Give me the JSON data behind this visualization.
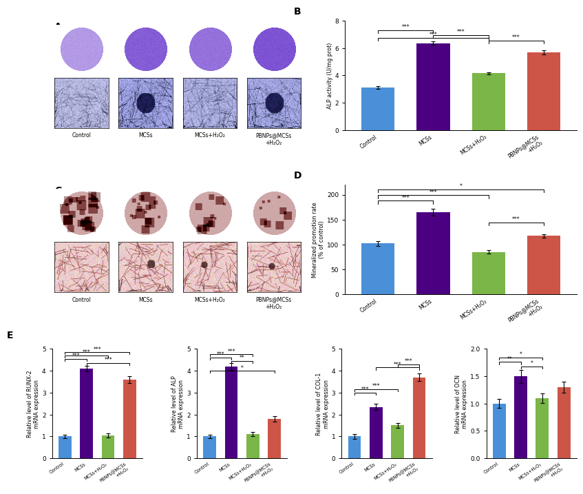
{
  "categories_short": [
    "Control",
    "MCSs",
    "MCSs+H₂O₂",
    "PBNPs@MCSs\n+H₂O₂"
  ],
  "bar_colors": [
    "#4a90d9",
    "#4b0082",
    "#7ab648",
    "#cc5547"
  ],
  "panel_B": {
    "title": "B",
    "ylabel": "ALP activity (U/mg prot)",
    "values": [
      3.1,
      6.35,
      4.15,
      5.7
    ],
    "errors": [
      0.1,
      0.12,
      0.08,
      0.15
    ],
    "ylim": [
      0,
      8
    ],
    "yticks": [
      0,
      2,
      4,
      6,
      8
    ],
    "sig_brackets": [
      [
        0,
        1,
        "***",
        7.1,
        7.3
      ],
      [
        0,
        2,
        "***",
        6.55,
        6.75
      ],
      [
        1,
        2,
        "***",
        6.75,
        6.95
      ],
      [
        2,
        3,
        "***",
        6.35,
        6.55
      ]
    ]
  },
  "panel_D": {
    "title": "D",
    "ylabel": "Mineralized promotion rate\n(% of control)",
    "values": [
      102,
      165,
      85,
      117
    ],
    "errors": [
      5,
      7,
      4,
      4
    ],
    "ylim": [
      0,
      220
    ],
    "yticks": [
      0,
      50,
      100,
      150,
      200
    ],
    "sig_brackets": [
      [
        0,
        1,
        "***",
        182,
        188
      ],
      [
        0,
        2,
        "***",
        193,
        199
      ],
      [
        0,
        3,
        "*",
        205,
        211
      ],
      [
        2,
        3,
        "***",
        138,
        144
      ]
    ]
  },
  "panel_E1": {
    "ylabel": "Relative level of RUNX-2\nmRNA expression",
    "values": [
      1.0,
      4.1,
      1.05,
      3.6
    ],
    "errors": [
      0.08,
      0.12,
      0.1,
      0.15
    ],
    "ylim": [
      0,
      5
    ],
    "yticks": [
      0,
      1,
      2,
      3,
      4,
      5
    ],
    "sig_brackets": [
      [
        0,
        1,
        "***",
        4.45,
        4.55
      ],
      [
        0,
        2,
        "***",
        4.6,
        4.7
      ],
      [
        0,
        3,
        "***",
        4.75,
        4.85
      ],
      [
        1,
        3,
        "***",
        4.25,
        4.35
      ]
    ]
  },
  "panel_E2": {
    "ylabel": "Relative level of ALP\nmRNA expression",
    "values": [
      1.0,
      4.2,
      1.1,
      1.8
    ],
    "errors": [
      0.08,
      0.15,
      0.1,
      0.12
    ],
    "ylim": [
      0,
      5
    ],
    "yticks": [
      0,
      1,
      2,
      3,
      4,
      5
    ],
    "sig_brackets": [
      [
        0,
        1,
        "***",
        4.5,
        4.6
      ],
      [
        0,
        2,
        "***",
        4.65,
        4.75
      ],
      [
        1,
        2,
        "**",
        4.35,
        4.45
      ],
      [
        0,
        3,
        "*",
        3.9,
        4.0
      ]
    ]
  },
  "panel_E3": {
    "ylabel": "Relative level of COL-1\nmRNA expression",
    "values": [
      1.0,
      2.35,
      1.5,
      3.7
    ],
    "errors": [
      0.1,
      0.15,
      0.1,
      0.18
    ],
    "ylim": [
      0,
      5
    ],
    "yticks": [
      0,
      1,
      2,
      3,
      4,
      5
    ],
    "sig_brackets": [
      [
        0,
        1,
        "***",
        2.9,
        3.0
      ],
      [
        0,
        2,
        "***",
        3.05,
        3.15
      ],
      [
        1,
        3,
        "***",
        4.05,
        4.15
      ],
      [
        2,
        3,
        "***",
        4.2,
        4.3
      ]
    ]
  },
  "panel_E4": {
    "ylabel": "Relative level of OCN\nmRNA expression",
    "values": [
      1.0,
      1.5,
      1.1,
      1.3
    ],
    "errors": [
      0.08,
      0.12,
      0.09,
      0.1
    ],
    "ylim": [
      0,
      2.0
    ],
    "yticks": [
      0.0,
      0.5,
      1.0,
      1.5,
      2.0
    ],
    "sig_brackets": [
      [
        0,
        1,
        "**",
        1.72,
        1.76
      ],
      [
        0,
        2,
        "*",
        1.8,
        1.84
      ],
      [
        1,
        2,
        "*",
        1.64,
        1.68
      ]
    ]
  }
}
